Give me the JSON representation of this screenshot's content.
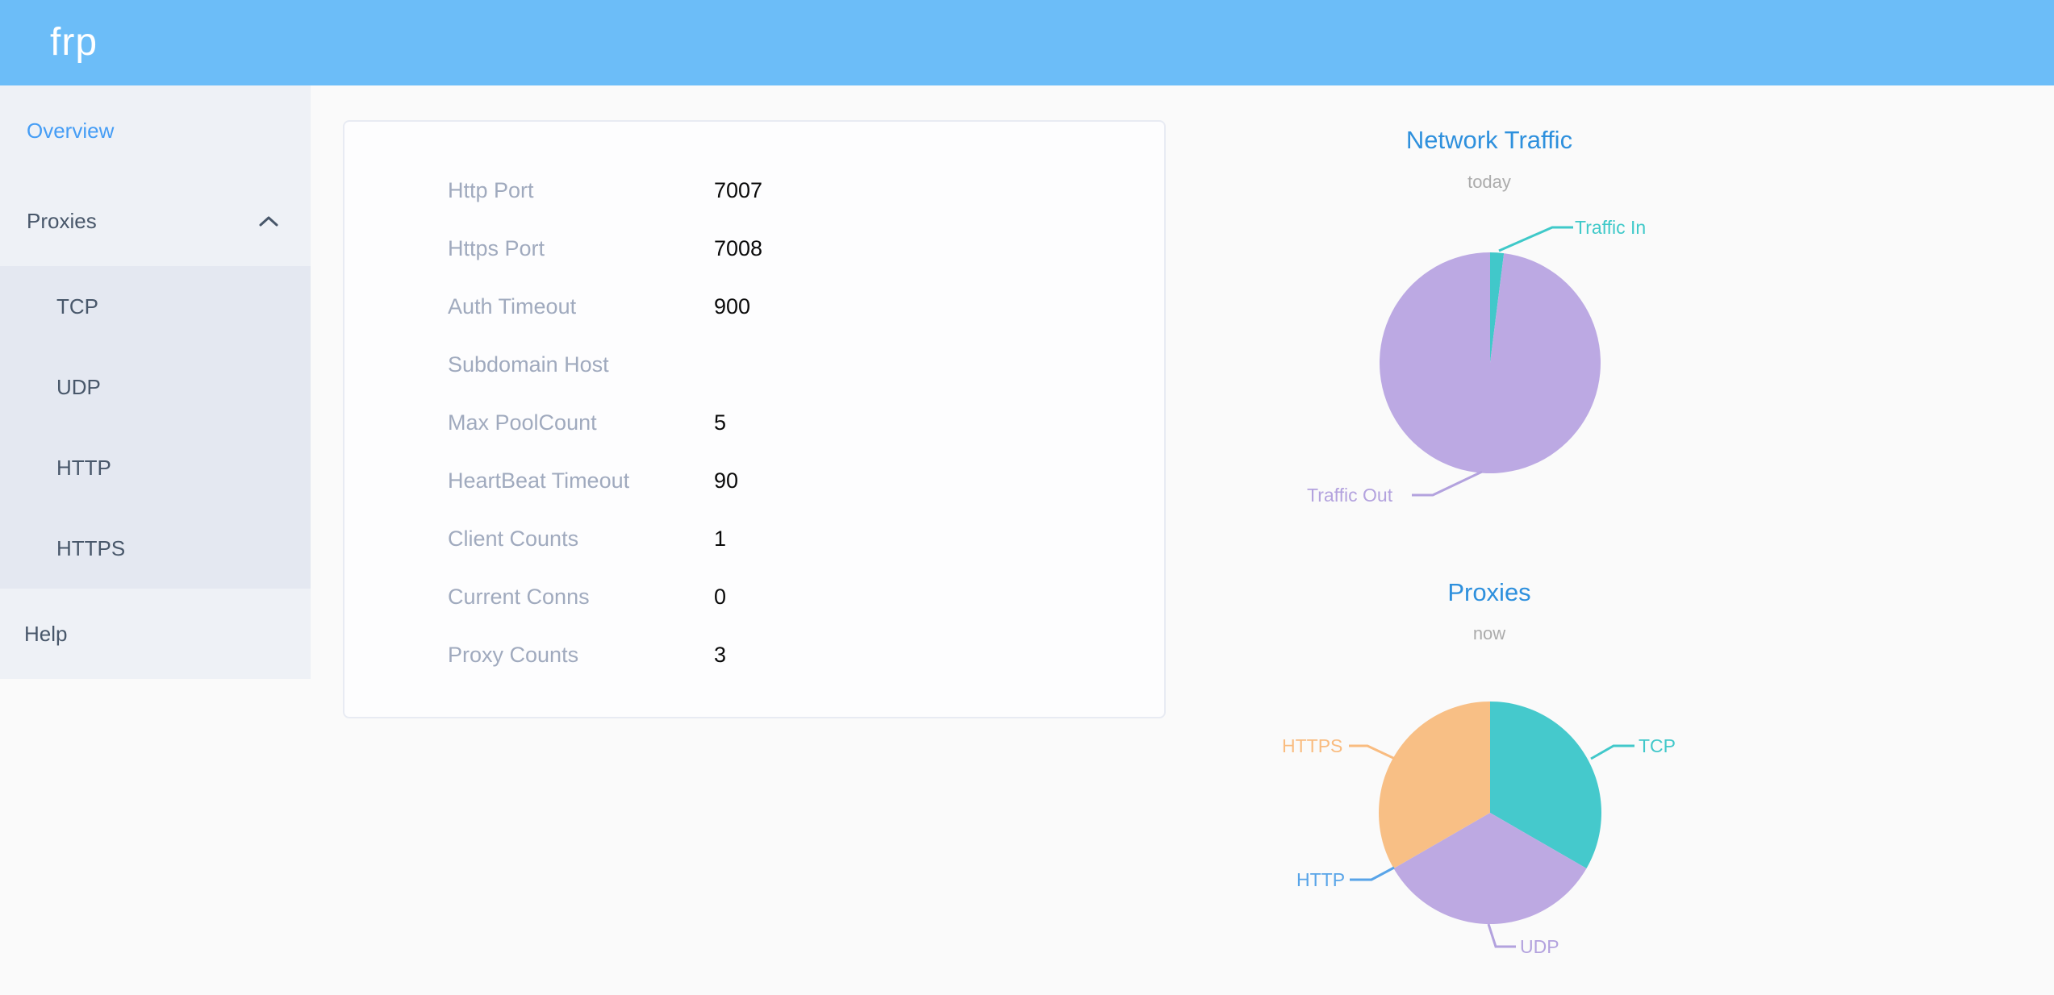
{
  "header": {
    "logo": "frp"
  },
  "sidebar": {
    "overview_label": "Overview",
    "proxies_label": "Proxies",
    "proxies_expanded": true,
    "submenu": [
      "TCP",
      "UDP",
      "HTTP",
      "HTTPS"
    ],
    "help_label": "Help"
  },
  "overview": {
    "rows": [
      {
        "label": "Http Port",
        "value": "7007"
      },
      {
        "label": "Https Port",
        "value": "7008"
      },
      {
        "label": "Auth Timeout",
        "value": "900"
      },
      {
        "label": "Subdomain Host",
        "value": ""
      },
      {
        "label": "Max PoolCount",
        "value": "5"
      },
      {
        "label": "HeartBeat Timeout",
        "value": "90"
      },
      {
        "label": "Client Counts",
        "value": "1"
      },
      {
        "label": "Current Conns",
        "value": "0"
      },
      {
        "label": "Proxy Counts",
        "value": "3"
      }
    ]
  },
  "chart_data": [
    {
      "type": "pie",
      "title": "Network Traffic",
      "subtitle": "today",
      "labels": [
        "Traffic In",
        "Traffic Out"
      ],
      "values": [
        2,
        98
      ],
      "unit": "% of total (estimated from arc angles)",
      "colors": [
        "#41c8ca",
        "#bca9e3"
      ],
      "label_colors": [
        "#3fc9c9",
        "#b3a2de"
      ],
      "legend_position": "callout-labels",
      "start_angle": "12 o'clock, clockwise"
    },
    {
      "type": "pie",
      "title": "Proxies",
      "subtitle": "now",
      "labels": [
        "TCP",
        "UDP",
        "HTTP",
        "HTTPS"
      ],
      "values": [
        1,
        1,
        0,
        1
      ],
      "colors": [
        "#45c9cc",
        "#bda9e2",
        "#58a4e8",
        "#f8bf85"
      ],
      "label_colors": [
        "#41c8ca",
        "#b3a2de",
        "#58a4e8",
        "#f9bc80"
      ],
      "legend_position": "callout-labels",
      "start_angle": "12 o'clock, clockwise"
    }
  ]
}
